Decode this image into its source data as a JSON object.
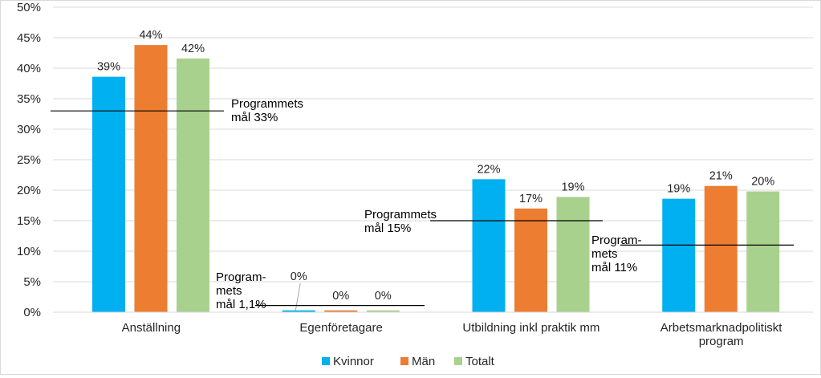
{
  "chart_data": {
    "type": "bar",
    "categories": [
      [
        "Anställning"
      ],
      [
        "Egenföretagare"
      ],
      [
        "Utbildning inkl praktik mm"
      ],
      [
        "Arbetsmarknadpolitiskt",
        "program"
      ]
    ],
    "series": [
      {
        "name": "Kvinnor",
        "color": "#00b0f0",
        "values": [
          38.6,
          0.3,
          21.8,
          18.6
        ],
        "labels": [
          "39%",
          "0%",
          "22%",
          "19%"
        ]
      },
      {
        "name": "Män",
        "color": "#ed7d31",
        "values": [
          43.8,
          0.3,
          17.0,
          20.7
        ],
        "labels": [
          "44%",
          "0%",
          "17%",
          "21%"
        ]
      },
      {
        "name": "Totalt",
        "color": "#a9d18e",
        "values": [
          41.6,
          0.3,
          18.9,
          19.8
        ],
        "labels": [
          "42%",
          "0%",
          "19%",
          "20%"
        ]
      }
    ],
    "ylim": [
      0,
      50
    ],
    "yticks": [
      0,
      5,
      10,
      15,
      20,
      25,
      30,
      35,
      40,
      45,
      50
    ],
    "ytick_labels": [
      "0%",
      "5%",
      "10%",
      "15%",
      "20%",
      "25%",
      "30%",
      "35%",
      "40%",
      "45%",
      "50%"
    ],
    "gridlines": true,
    "legend_position": "bottom",
    "targets": [
      {
        "category": 0,
        "value": 33,
        "lines": [
          "Programmets",
          "mål 33%"
        ]
      },
      {
        "category": 1,
        "value": 1.1,
        "lines": [
          "Program-",
          "mets",
          "mål 1,1%"
        ]
      },
      {
        "category": 2,
        "value": 15,
        "lines": [
          "Programmets",
          "mål 15%"
        ]
      },
      {
        "category": 3,
        "value": 11,
        "lines": [
          "Program-",
          "mets",
          "mål 11%"
        ]
      }
    ]
  }
}
